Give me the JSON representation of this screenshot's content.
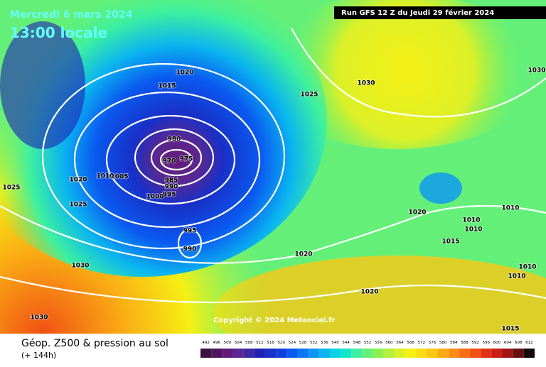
{
  "header": {
    "date": "Mercredi 6 mars 2024",
    "time": "13:00 locale",
    "run": "Run GFS 12 Z du Jeudi 29 février 2024"
  },
  "copyright": "Copyright © 2024 Meteociel.fr",
  "footer": {
    "title": "Géop. Z500 & pression au sol",
    "lead": "(+ 144h)"
  },
  "legend": {
    "values": [
      492,
      496,
      500,
      504,
      508,
      512,
      516,
      520,
      524,
      528,
      532,
      536,
      540,
      544,
      548,
      552,
      556,
      560,
      564,
      568,
      572,
      576,
      580,
      584,
      588,
      592,
      596,
      600,
      604,
      608,
      612
    ],
    "colors": [
      "#3c1040",
      "#50145a",
      "#641a78",
      "#5a2890",
      "#3c2aa0",
      "#2020b4",
      "#1830c8",
      "#1040dc",
      "#0a5af0",
      "#0a78f5",
      "#0a96f5",
      "#0ab4f0",
      "#0ad2e6",
      "#14e6c8",
      "#3cf0a0",
      "#64f078",
      "#8cf050",
      "#b4f03c",
      "#dcf028",
      "#f5f014",
      "#fadc14",
      "#fac814",
      "#faaa14",
      "#fa8c14",
      "#f56e14",
      "#f05014",
      "#e13214",
      "#c81e14",
      "#a01414",
      "#641010",
      "#140a0a"
    ]
  },
  "isobar_labels": [
    "1020",
    "1015",
    "1025",
    "1030",
    "1030",
    "980",
    "970",
    "975",
    "985",
    "990",
    "995",
    "1000",
    "1005",
    "1010",
    "1020",
    "1025",
    "1025",
    "995",
    "990",
    "1030",
    "1030",
    "1020",
    "1020",
    "1010",
    "1010",
    "1010",
    "1015",
    "1010",
    "1010",
    "1020",
    "1015"
  ]
}
